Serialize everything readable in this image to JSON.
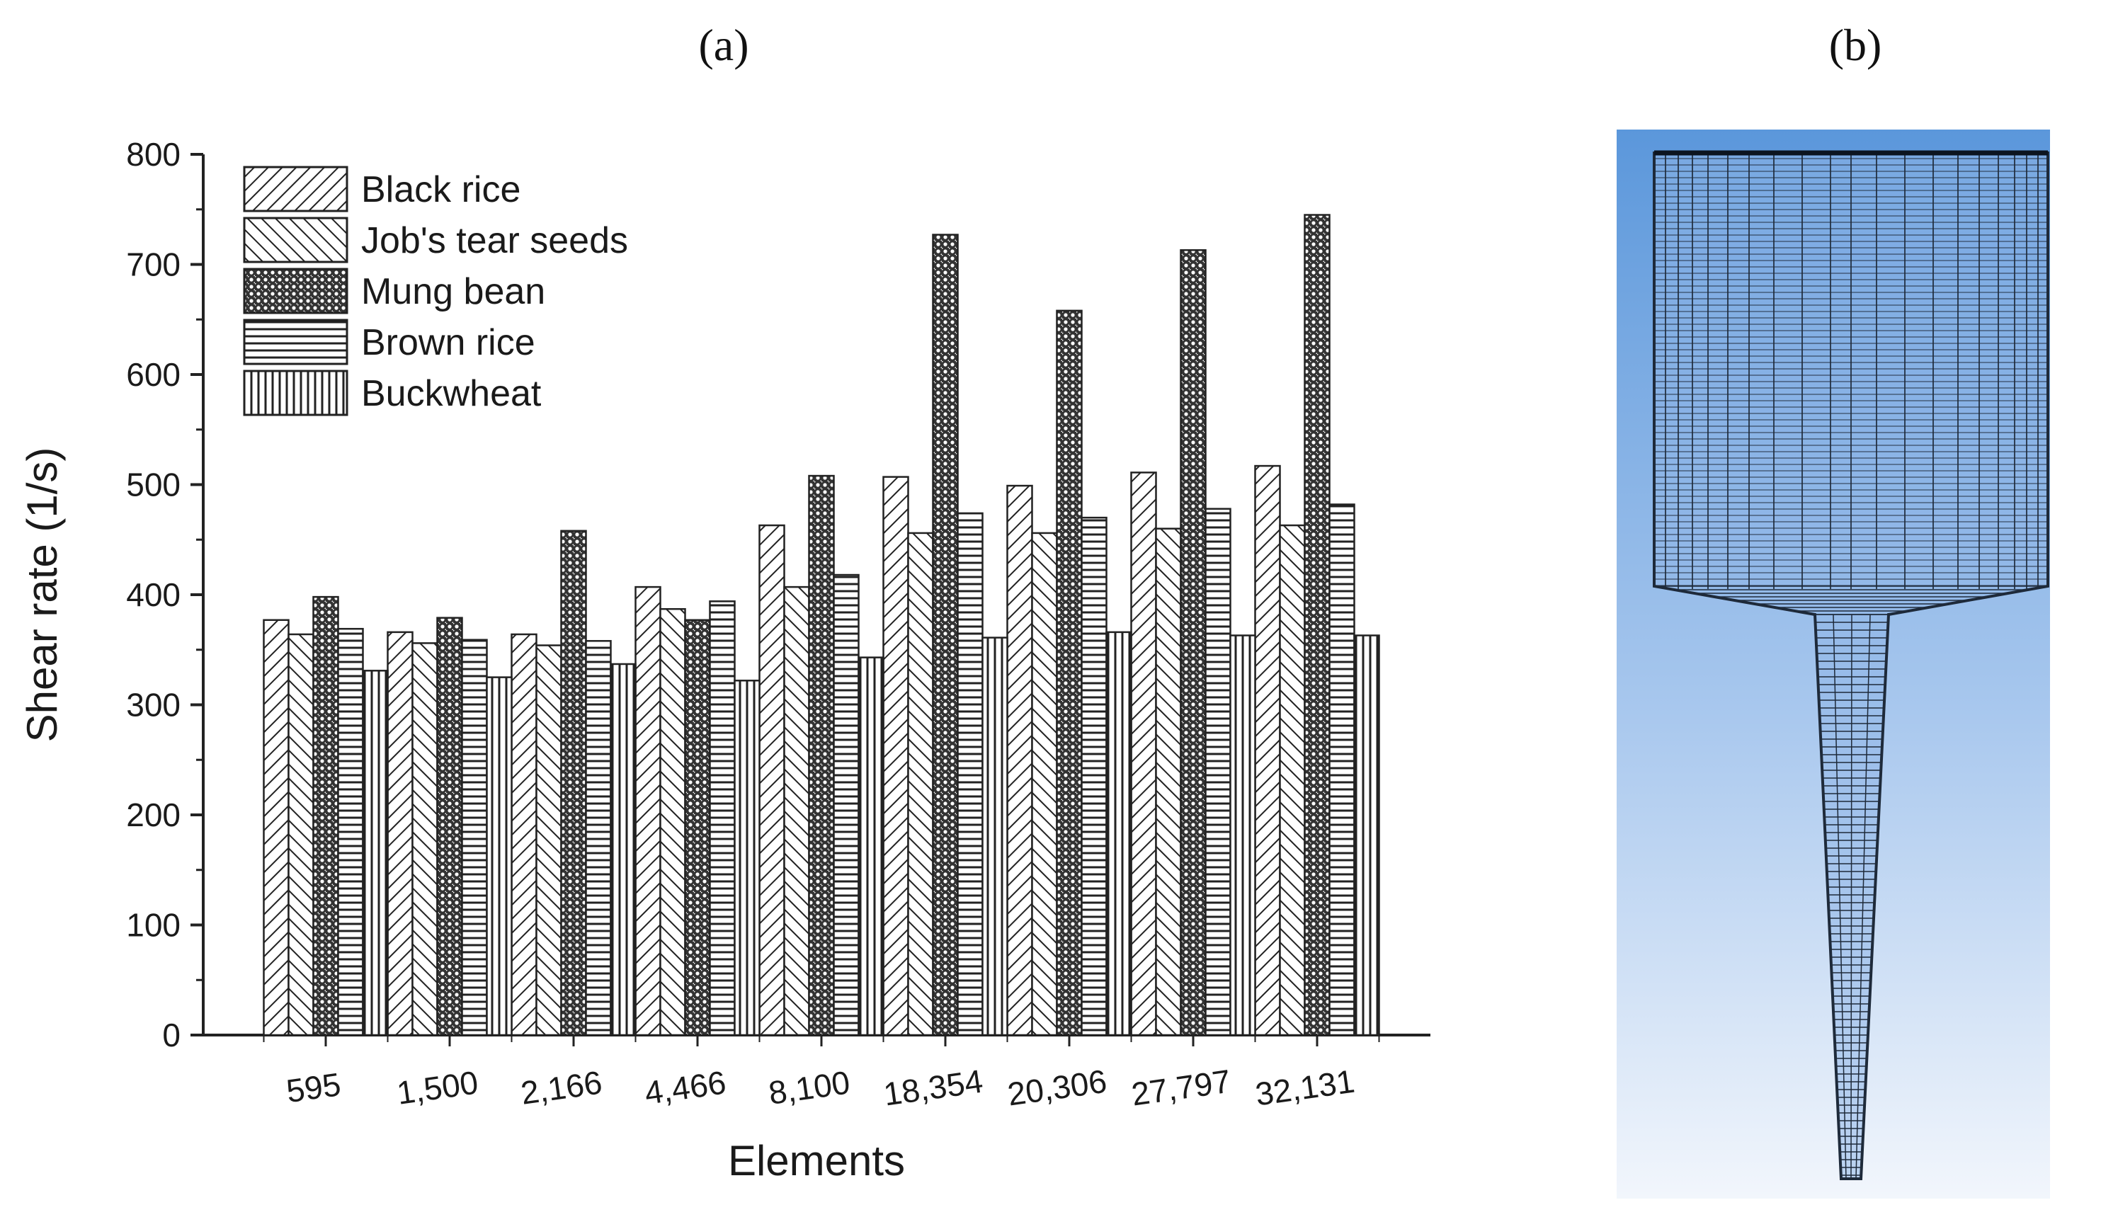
{
  "panels": {
    "a_label": "(a)",
    "b_label": "(b)"
  },
  "chart_data": {
    "type": "bar",
    "title": "",
    "xlabel": "Elements",
    "ylabel": "Shear rate (1/s)",
    "ylim": [
      0,
      800
    ],
    "yticks": [
      "0",
      "100",
      "200",
      "300",
      "400",
      "500",
      "600",
      "700",
      "800"
    ],
    "categories": [
      "595",
      "1,500",
      "2,166",
      "4,466",
      "8,100",
      "18,354",
      "20,306",
      "27,797",
      "32,131"
    ],
    "legend_position": "top-left",
    "series": [
      {
        "name": "Black rice",
        "pattern": "diag-right",
        "values": [
          377,
          366,
          364,
          407,
          463,
          507,
          499,
          511,
          517
        ]
      },
      {
        "name": "Job's tear seeds",
        "pattern": "diag-left",
        "values": [
          364,
          356,
          354,
          387,
          407,
          456,
          456,
          460,
          463
        ]
      },
      {
        "name": "Mung bean",
        "pattern": "cross",
        "values": [
          398,
          379,
          458,
          377,
          508,
          727,
          658,
          713,
          745
        ]
      },
      {
        "name": "Brown rice",
        "pattern": "horizontal",
        "values": [
          369,
          359,
          358,
          394,
          418,
          474,
          470,
          478,
          482
        ]
      },
      {
        "name": "Buckwheat",
        "pattern": "vertical",
        "values": [
          331,
          325,
          337,
          322,
          343,
          361,
          366,
          363,
          363
        ]
      }
    ]
  },
  "mesh_image": {
    "description_name": "funnel-mesh"
  }
}
